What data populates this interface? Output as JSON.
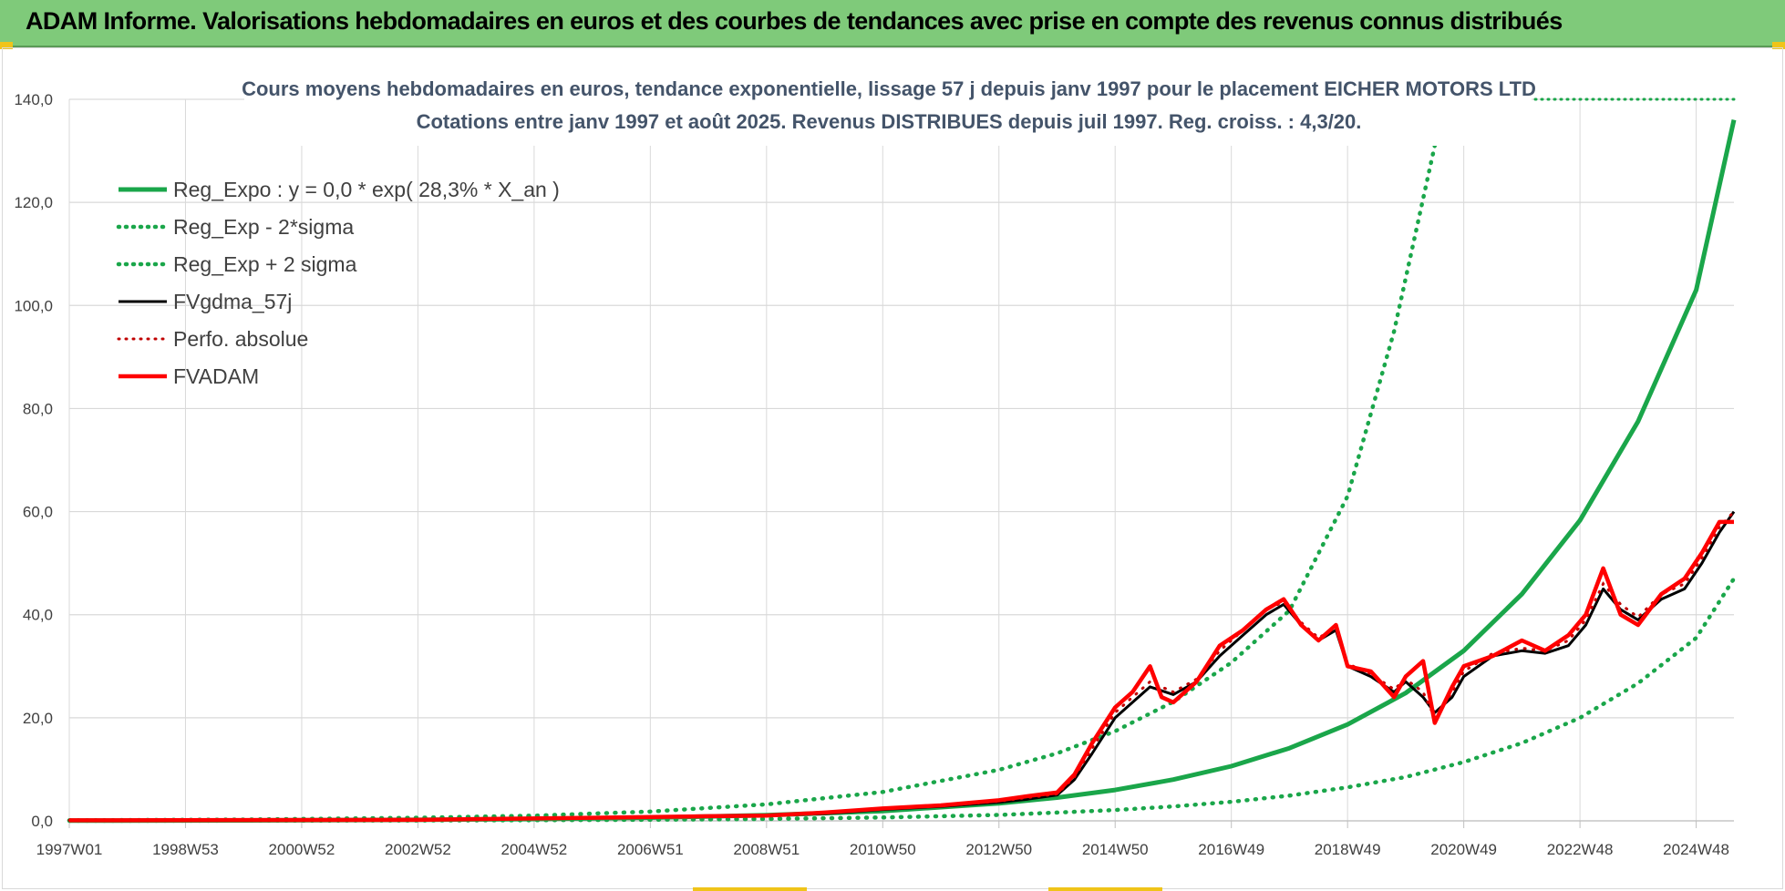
{
  "banner": {
    "title": "ADAM Informe. Valorisations hebdomadaires en euros et des courbes de tendances avec prise en compte des revenus connus distribués"
  },
  "colors": {
    "banner_bg": "#7fca7a",
    "reg_expo": "#1aa64a",
    "sigma_bands": "#1aa64a",
    "fv_gdma": "#000000",
    "fv_adam": "#ff0000",
    "perfo": "#c00000",
    "grid": "#d9d9d9",
    "title": "#44546a"
  },
  "chart_data": {
    "type": "line",
    "title": "Cours moyens hebdomadaires en euros, tendance exponentielle, lissage 57 j depuis janv 1997 pour le placement EICHER MOTORS LTD",
    "subtitle": "Cotations entre janv 1997 et août 2025. Revenus DISTRIBUES depuis juil 1997. Reg. croiss. : 4,3/20.",
    "xlabel": "",
    "ylabel": "",
    "x_range": [
      1997.0,
      2025.65
    ],
    "ylim": [
      0,
      140
    ],
    "y_ticks": [
      "0,0",
      "20,0",
      "40,0",
      "60,0",
      "80,0",
      "100,0",
      "120,0",
      "140,0"
    ],
    "x_ticks": [
      {
        "label": "1997W01",
        "x": 1997.0
      },
      {
        "label": "1998W53",
        "x": 1999.0
      },
      {
        "label": "2000W52",
        "x": 2001.0
      },
      {
        "label": "2002W52",
        "x": 2003.0
      },
      {
        "label": "2004W52",
        "x": 2005.0
      },
      {
        "label": "2006W51",
        "x": 2007.0
      },
      {
        "label": "2008W51",
        "x": 2009.0
      },
      {
        "label": "2010W50",
        "x": 2011.0
      },
      {
        "label": "2012W50",
        "x": 2013.0
      },
      {
        "label": "2014W50",
        "x": 2015.0
      },
      {
        "label": "2016W49",
        "x": 2017.0
      },
      {
        "label": "2018W49",
        "x": 2019.0
      },
      {
        "label": "2020W49",
        "x": 2021.0
      },
      {
        "label": "2022W48",
        "x": 2023.0
      },
      {
        "label": "2024W48",
        "x": 2025.0
      }
    ],
    "grid": true,
    "legend_position": "top-left",
    "series": [
      {
        "name": "Reg_Expo : y = 0,0 * exp( 28,3% *  X_an )",
        "style": "solid-thick",
        "color": "#1aa64a",
        "x": [
          1997.0,
          2000.0,
          2003.0,
          2005.0,
          2007.0,
          2009.0,
          2011.0,
          2013.0,
          2014.0,
          2015.0,
          2016.0,
          2017.0,
          2018.0,
          2019.0,
          2020.0,
          2021.0,
          2022.0,
          2023.0,
          2024.0,
          2025.0,
          2025.65
        ],
        "y": [
          0.04,
          0.09,
          0.2,
          0.35,
          0.62,
          1.1,
          1.9,
          3.4,
          4.5,
          6.0,
          8.0,
          10.6,
          14.1,
          18.7,
          24.8,
          33.0,
          44.0,
          58.3,
          77.5,
          103.0,
          136.0
        ]
      },
      {
        "name": "Reg_Exp - 2*sigma",
        "style": "dotted",
        "color": "#1aa64a",
        "x": [
          1997.0,
          2000.0,
          2003.0,
          2005.0,
          2007.0,
          2009.0,
          2011.0,
          2013.0,
          2014.0,
          2015.0,
          2016.0,
          2017.0,
          2018.0,
          2019.0,
          2020.0,
          2021.0,
          2022.0,
          2023.0,
          2024.0,
          2025.0,
          2025.65
        ],
        "y": [
          0.01,
          0.03,
          0.07,
          0.12,
          0.21,
          0.37,
          0.65,
          1.15,
          1.6,
          2.1,
          2.8,
          3.7,
          4.9,
          6.5,
          8.5,
          11.4,
          15.1,
          20.0,
          26.7,
          35.5,
          47.0
        ]
      },
      {
        "name": "Reg_Exp + 2 sigma",
        "style": "dotted",
        "color": "#1aa64a",
        "x": [
          1997.0,
          2000.0,
          2003.0,
          2005.0,
          2007.0,
          2009.0,
          2011.0,
          2013.0,
          2014.0,
          2015.0,
          2016.0,
          2017.0,
          2018.0,
          2019.0,
          2019.8,
          2020.5
        ],
        "y": [
          0.1,
          0.25,
          0.6,
          1.0,
          1.8,
          3.2,
          5.6,
          9.9,
          13.1,
          17.4,
          23.1,
          30.7,
          40.8,
          63.0,
          95.0,
          131.0
        ]
      },
      {
        "name": "FVgdma_57j",
        "style": "solid",
        "color": "#000000",
        "x": [
          1997.0,
          2003.0,
          2006.0,
          2008.0,
          2009.0,
          2010.0,
          2011.0,
          2012.0,
          2013.0,
          2013.5,
          2014.0,
          2014.3,
          2014.6,
          2015.0,
          2015.3,
          2015.6,
          2016.0,
          2016.4,
          2016.8,
          2017.2,
          2017.6,
          2017.9,
          2018.2,
          2018.5,
          2018.8,
          2019.0,
          2019.4,
          2019.8,
          2020.0,
          2020.3,
          2020.5,
          2020.8,
          2021.0,
          2021.5,
          2022.0,
          2022.4,
          2022.8,
          2023.1,
          2023.4,
          2023.7,
          2024.0,
          2024.4,
          2024.8,
          2025.1,
          2025.4,
          2025.65
        ],
        "y": [
          0.1,
          0.2,
          0.6,
          0.9,
          1.0,
          1.4,
          2.2,
          2.8,
          3.6,
          4.2,
          5.0,
          8.0,
          13.0,
          20.0,
          23.0,
          26.0,
          24.5,
          27.0,
          32.0,
          36.0,
          40.0,
          42.0,
          38.0,
          35.0,
          37.0,
          30.0,
          28.0,
          25.0,
          27.0,
          24.0,
          21.0,
          24.0,
          28.0,
          32.0,
          33.0,
          32.5,
          34.0,
          38.0,
          45.0,
          41.0,
          39.0,
          43.0,
          45.0,
          50.0,
          56.0,
          60.0
        ]
      },
      {
        "name": "Perfo. absolue",
        "style": "dotted",
        "color": "#c00000",
        "x": [
          1997.0,
          2003.0,
          2006.0,
          2008.0,
          2009.0,
          2010.0,
          2011.0,
          2012.0,
          2013.0,
          2013.5,
          2014.0,
          2014.3,
          2014.6,
          2015.0,
          2015.3,
          2015.6,
          2016.0,
          2016.4,
          2016.8,
          2017.2,
          2017.6,
          2017.9,
          2018.2,
          2018.5,
          2018.8,
          2019.0,
          2019.4,
          2019.8,
          2020.0,
          2020.3,
          2020.5,
          2020.8,
          2021.0,
          2021.5,
          2022.0,
          2022.4,
          2022.8,
          2023.1,
          2023.4,
          2023.7,
          2024.0,
          2024.4,
          2024.8,
          2025.1,
          2025.4,
          2025.65
        ],
        "y": [
          0.1,
          0.2,
          0.6,
          0.9,
          1.0,
          1.5,
          2.3,
          2.9,
          3.8,
          4.5,
          5.2,
          8.5,
          14.0,
          21.0,
          24.0,
          27.0,
          25.0,
          27.5,
          33.0,
          37.0,
          41.0,
          42.5,
          38.5,
          35.5,
          37.5,
          30.5,
          28.5,
          25.5,
          27.5,
          25.0,
          20.0,
          25.0,
          29.0,
          32.5,
          33.5,
          33.0,
          35.0,
          39.0,
          46.0,
          42.0,
          39.5,
          44.0,
          46.0,
          51.0,
          57.0,
          60.0
        ]
      },
      {
        "name": "FVADAM",
        "style": "solid-thick",
        "color": "#ff0000",
        "x": [
          1997.0,
          2003.0,
          2006.0,
          2008.0,
          2009.0,
          2010.0,
          2011.0,
          2012.0,
          2013.0,
          2013.5,
          2014.0,
          2014.3,
          2014.6,
          2015.0,
          2015.3,
          2015.6,
          2015.8,
          2016.0,
          2016.4,
          2016.8,
          2017.2,
          2017.6,
          2017.9,
          2018.2,
          2018.5,
          2018.8,
          2019.0,
          2019.4,
          2019.8,
          2020.0,
          2020.3,
          2020.5,
          2020.8,
          2021.0,
          2021.5,
          2022.0,
          2022.4,
          2022.8,
          2023.1,
          2023.4,
          2023.7,
          2024.0,
          2024.4,
          2024.8,
          2025.1,
          2025.4,
          2025.65
        ],
        "y": [
          0.1,
          0.2,
          0.6,
          0.9,
          1.0,
          1.6,
          2.4,
          3.0,
          4.0,
          4.8,
          5.5,
          9.0,
          15.0,
          22.0,
          25.0,
          30.0,
          24.0,
          23.0,
          27.0,
          34.0,
          37.0,
          41.0,
          43.0,
          38.0,
          35.0,
          38.0,
          30.0,
          29.0,
          24.0,
          28.0,
          31.0,
          19.0,
          26.0,
          30.0,
          32.0,
          35.0,
          33.0,
          36.0,
          40.0,
          49.0,
          40.0,
          38.0,
          44.0,
          47.0,
          52.0,
          58.0,
          58.0
        ]
      }
    ]
  }
}
